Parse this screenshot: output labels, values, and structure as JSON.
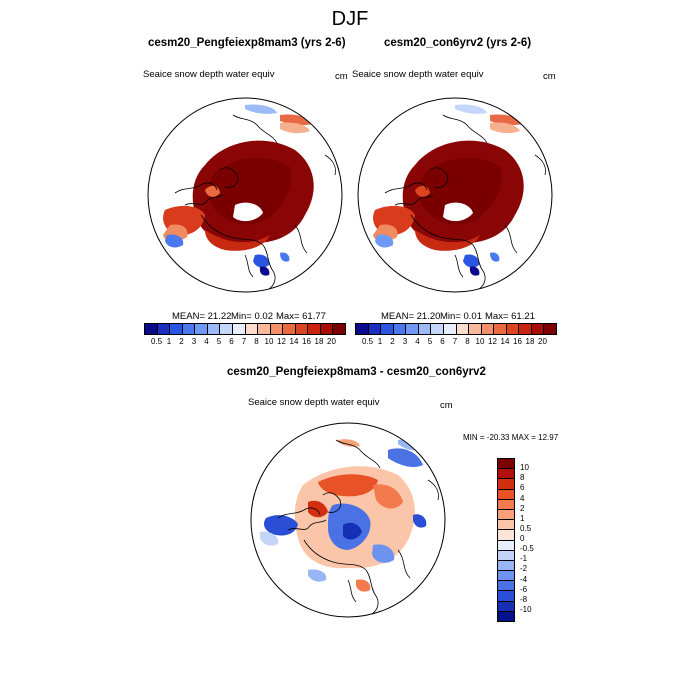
{
  "figure": {
    "title": "DJF",
    "variable_label": "Seaice snow depth water equiv",
    "units": "cm"
  },
  "panel_left": {
    "title": "cesm20_Pengfeiexp8mam3 (yrs 2-6)",
    "stats_mean": "MEAN=  21.22",
    "stats_min": "Min=   0.02",
    "stats_max": "Max=  61.77"
  },
  "panel_right": {
    "title": "cesm20_con6yrv2 (yrs 2-6)",
    "stats_mean": "MEAN=  21.20",
    "stats_min": "Min=   0.01",
    "stats_max": "Max=  61.21"
  },
  "panel_diff": {
    "title": "cesm20_Pengfeiexp8mam3 - cesm20_con6yrv2",
    "stats_minmax": "MIN = -20.33 MAX =  12.97"
  },
  "abs_colorbar": {
    "labels": [
      "0.5",
      "1",
      "2",
      "3",
      "4",
      "5",
      "6",
      "7",
      "8",
      "10",
      "12",
      "14",
      "16",
      "18",
      "20"
    ],
    "colors": [
      "#0a0a8c",
      "#1a2fbf",
      "#2a55e0",
      "#4a78ef",
      "#7099f5",
      "#9cbaf8",
      "#c4d6fb",
      "#e9eefc",
      "#fbdccd",
      "#f8b99c",
      "#f3906b",
      "#ea6a40",
      "#dd4420",
      "#c92410",
      "#a80c05",
      "#7c0000"
    ]
  },
  "diff_colorbar": {
    "labels": [
      "10",
      "8",
      "6",
      "4",
      "2",
      "1",
      "0.5",
      "0",
      "-0.5",
      "-1",
      "-2",
      "-4",
      "-6",
      "-8",
      "-10"
    ],
    "colors": [
      "#7c0000",
      "#b01008",
      "#d12e12",
      "#e85226",
      "#f37a4c",
      "#f8a07a",
      "#fbc5aa",
      "#fde4d8",
      "#e6eefb",
      "#c2d5f8",
      "#97b6f3",
      "#6c93ee",
      "#4a72e5",
      "#2a4ed6",
      "#1530b5",
      "#06128a"
    ]
  }
}
